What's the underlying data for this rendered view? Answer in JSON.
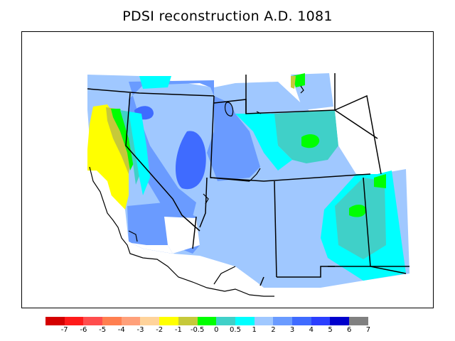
{
  "title": "PDSI reconstruction A.D. 1081",
  "legend": {
    "colors": [
      "#d40000",
      "#ff1a1a",
      "#ff4d4d",
      "#ff7f50",
      "#ffa07a",
      "#ffd39b",
      "#ffff00",
      "#c6c93a",
      "#00ff00",
      "#40d0c8",
      "#00ffff",
      "#a0c8ff",
      "#6a9bff",
      "#3f6bff",
      "#2b3fff",
      "#0000cc",
      "#808080"
    ],
    "ticks": [
      "-7",
      "-6",
      "-5",
      "-4",
      "-3",
      "-2",
      "-1",
      "-0.5",
      "0",
      "0.5",
      "1",
      "2",
      "3",
      "4",
      "5",
      "6",
      "7"
    ]
  }
}
